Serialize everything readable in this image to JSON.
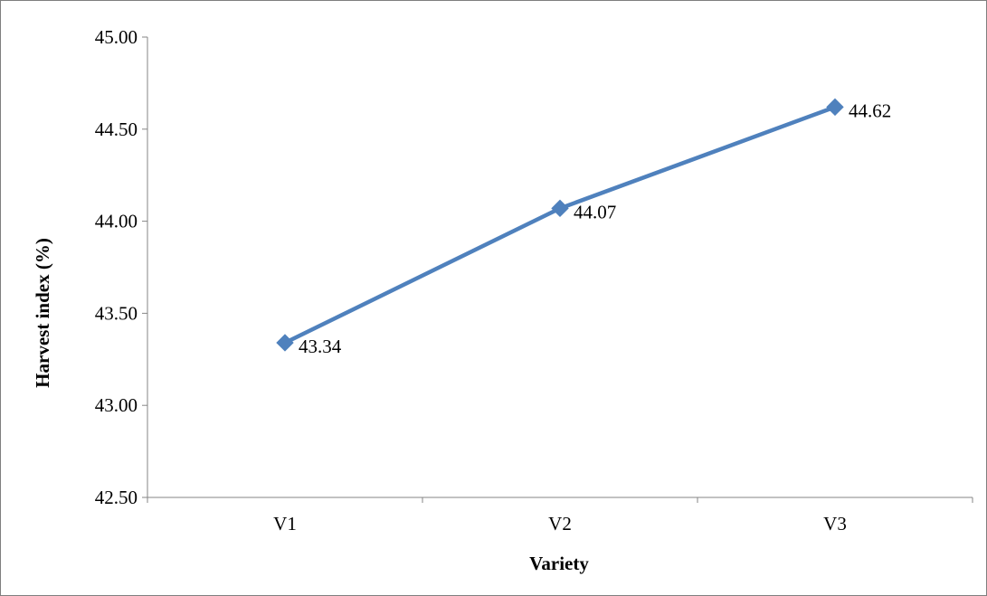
{
  "chart_data": {
    "type": "line",
    "title": "",
    "xlabel": "Variety",
    "ylabel": "Harvest index (%)",
    "categories": [
      "V1",
      "V2",
      "V3"
    ],
    "series": [
      {
        "values": [
          43.34,
          44.07,
          44.62
        ],
        "color": "#4F81BD",
        "marker": "diamond"
      }
    ],
    "data_labels": [
      "43.34",
      "44.07",
      "44.62"
    ],
    "ylim": [
      42.5,
      45.0
    ],
    "yticks": [
      "42.50",
      "43.00",
      "43.50",
      "44.00",
      "44.50",
      "45.00"
    ],
    "ytick_values": [
      42.5,
      43.0,
      43.5,
      44.0,
      44.5,
      45.0
    ],
    "grid": false,
    "legend": "none"
  }
}
